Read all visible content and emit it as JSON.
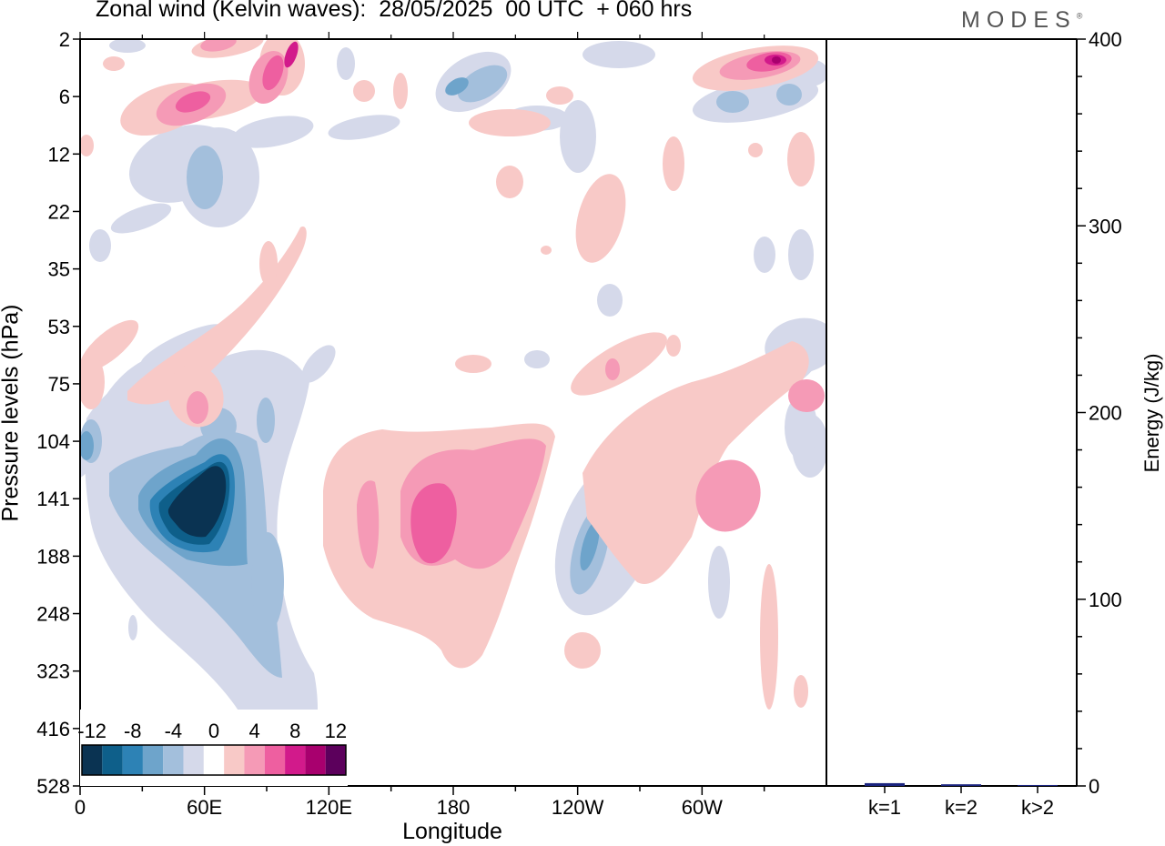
{
  "header": {
    "title": "Zonal wind (Kelvin waves):  28/05/2025  00 UTC  + 060 hrs",
    "brand": "MODES",
    "brand_mark": "®"
  },
  "chart_data": [
    {
      "type": "heatmap",
      "title": "Zonal wind (Kelvin waves):  28/05/2025  00 UTC  + 060 hrs",
      "xlabel": "Longitude",
      "ylabel": "Pressure levels (hPa)",
      "x_ticks": [
        "0",
        "60E",
        "120E",
        "180",
        "120W",
        "60W"
      ],
      "x_range_deg": [
        0,
        360
      ],
      "y_ticks": [
        "2",
        "6",
        "12",
        "22",
        "35",
        "53",
        "75",
        "104",
        "141",
        "188",
        "248",
        "323",
        "416",
        "528"
      ],
      "colorbar": {
        "labels": [
          "-12",
          "-8",
          "-4",
          "0",
          "4",
          "8",
          "12"
        ],
        "levels": [
          -14,
          -12,
          -10,
          -8,
          -6,
          -4,
          -2,
          2,
          4,
          6,
          8,
          10,
          12,
          14
        ],
        "colors": [
          "#0a3352",
          "#0e5f8a",
          "#2d82b5",
          "#6ea4cb",
          "#a3bfdc",
          "#d5d9ea",
          "#ffffff",
          "#f8c9c7",
          "#f59ab6",
          "#ee5fa0",
          "#d21a8b",
          "#a8006e",
          "#5c005c"
        ]
      },
      "regions": [
        {
          "name": "strong-easterly-core",
          "lon": 57,
          "level": 130,
          "value": -12
        },
        {
          "name": "westerly-upper-tropo",
          "lon": 170,
          "level": 150,
          "value": 8
        },
        {
          "name": "westerly-east-pacific",
          "lon": 290,
          "level": 140,
          "value": 6
        },
        {
          "name": "easterly-strato-6hPa",
          "lon": 290,
          "level": 6,
          "value": -6
        },
        {
          "name": "westerly-strato-2hPa",
          "lon": 330,
          "level": 3,
          "value": 10
        }
      ]
    },
    {
      "type": "bar",
      "ylabel": "Energy (J/kg)",
      "categories": [
        "k=1",
        "k=2",
        "k>2"
      ],
      "values": [
        1.5,
        0.9,
        0.5
      ],
      "ylim": [
        0,
        400
      ],
      "y_ticks": [
        "0",
        "100",
        "200",
        "300",
        "400"
      ],
      "bar_color": "#1a237e"
    }
  ]
}
